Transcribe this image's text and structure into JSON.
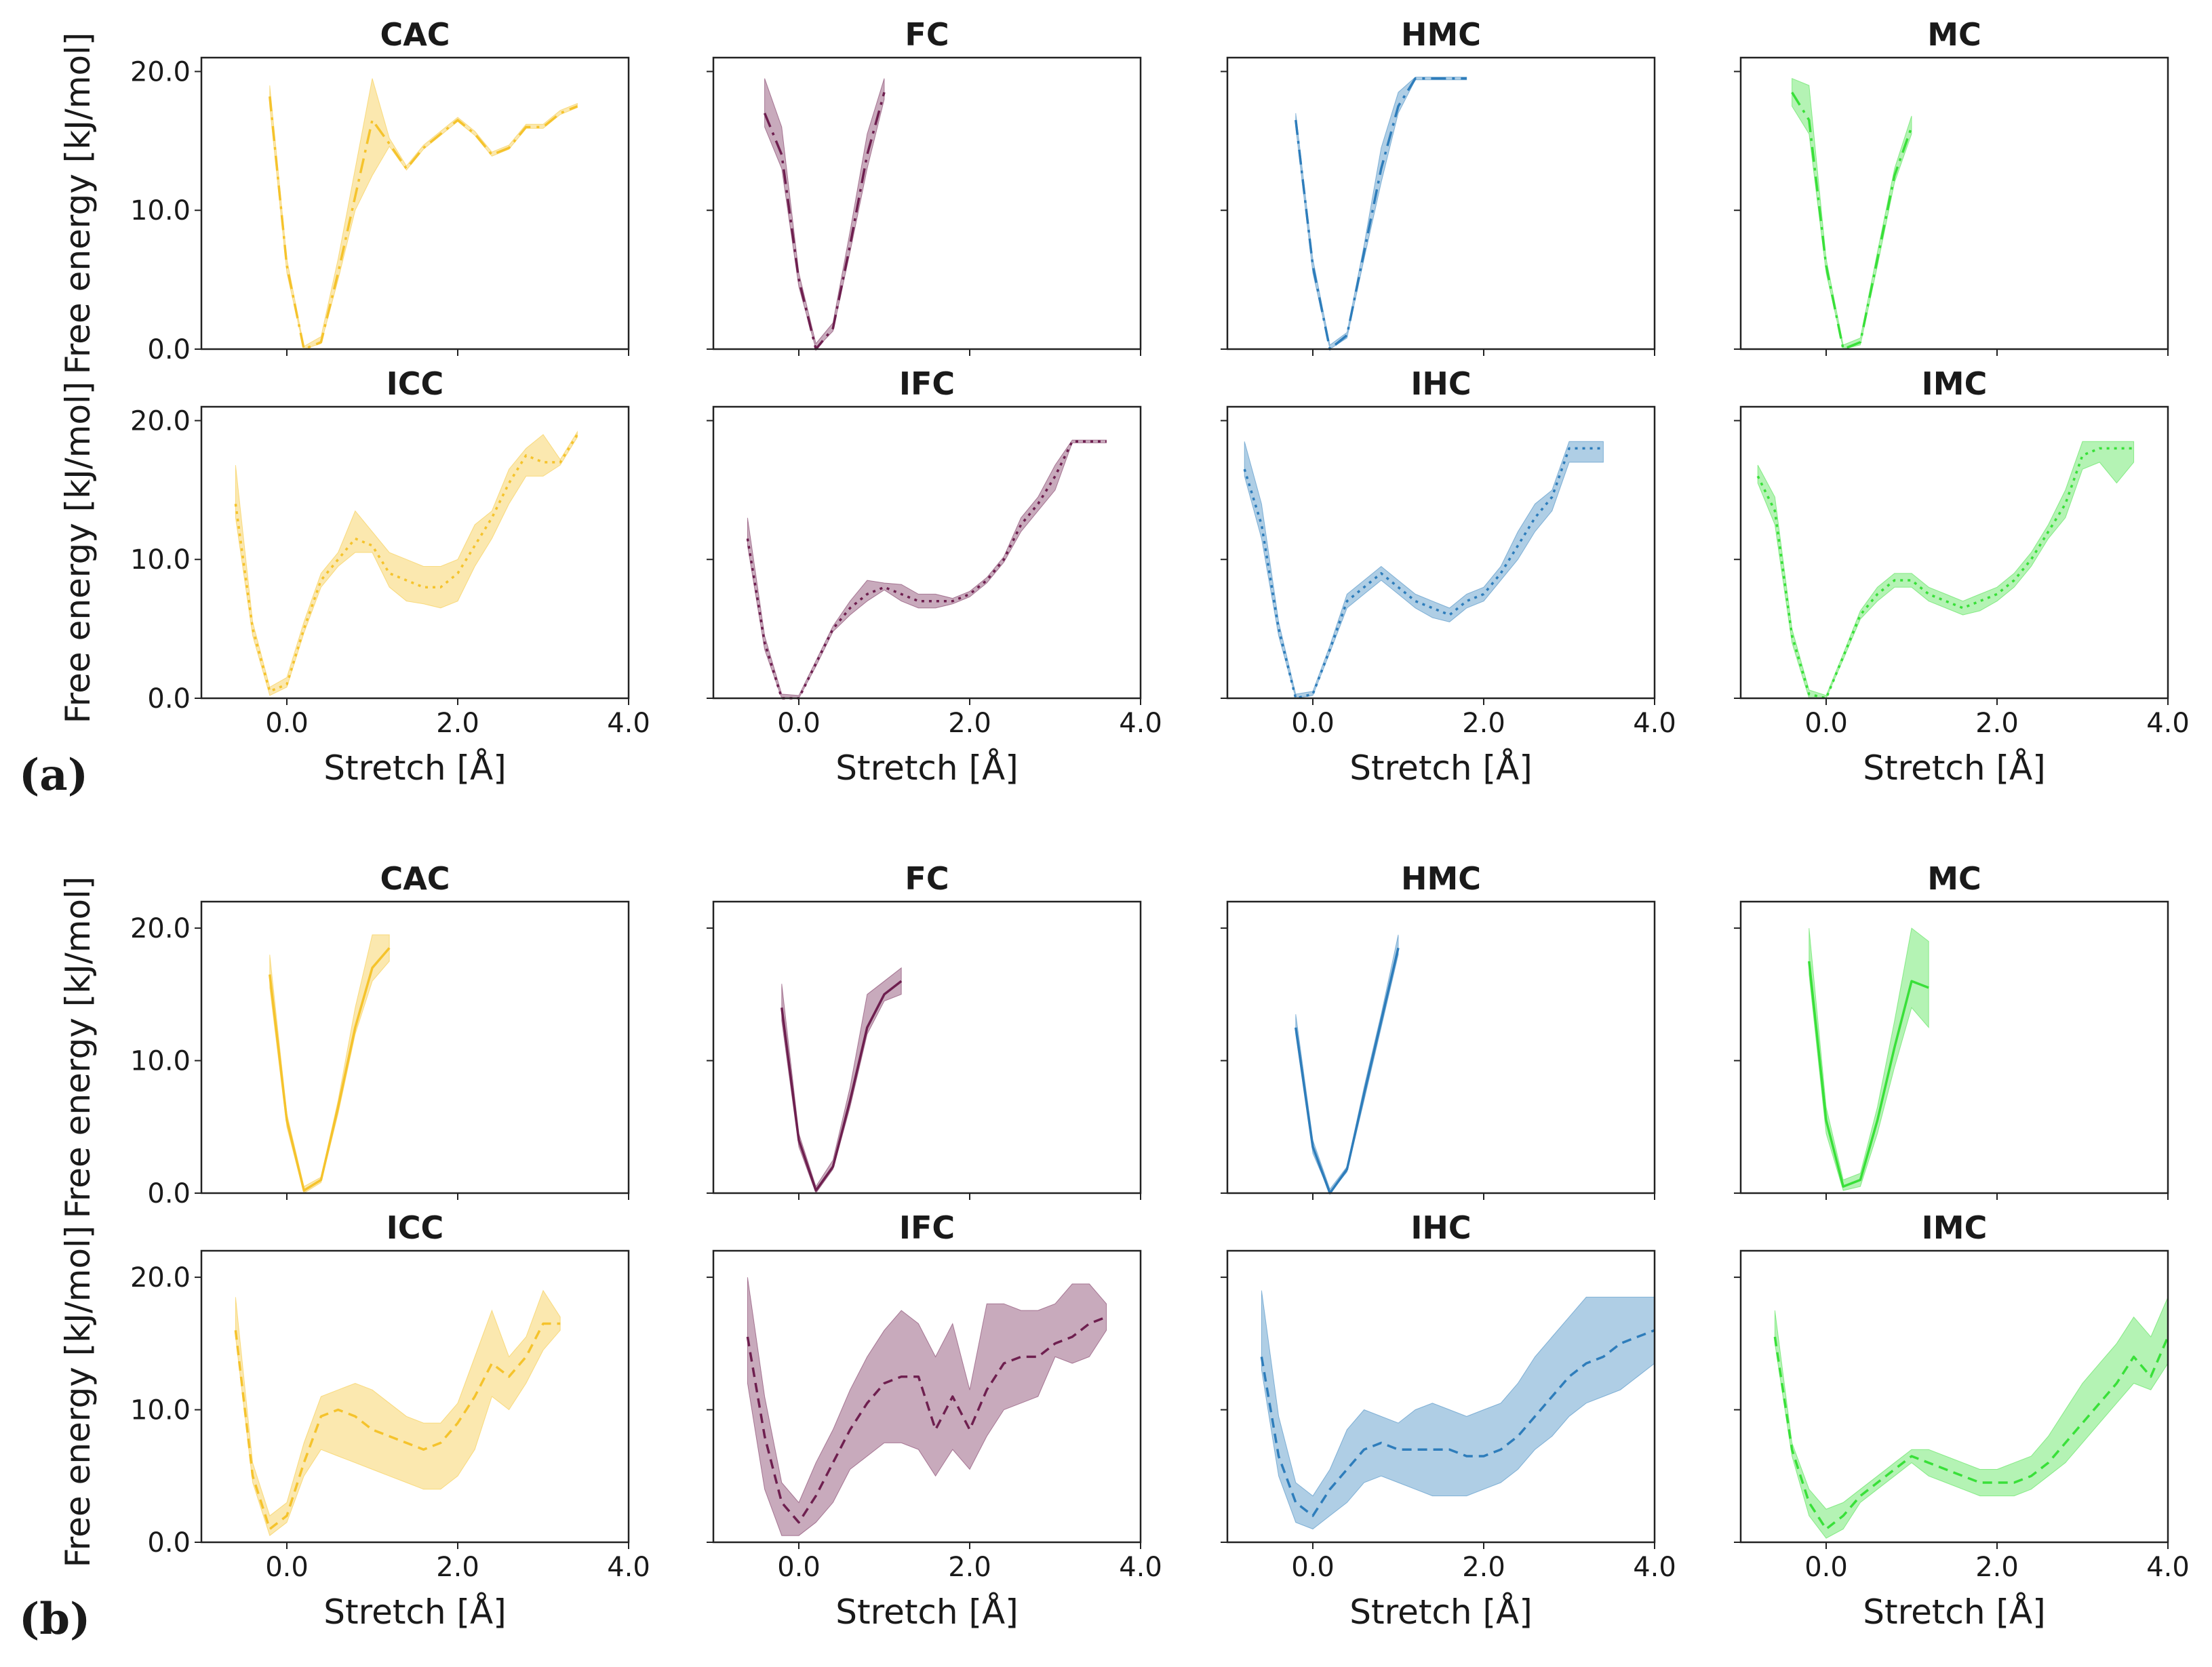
{
  "figure": {
    "panel_labels": [
      "(a)",
      "(b)"
    ],
    "xlabel": "Stretch [Å]",
    "ylabel": "Free energy [kJ/mol]",
    "x_ticks": [
      "0.0",
      "2.0",
      "4.0"
    ],
    "y_ticks": [
      "0.0",
      "10.0",
      "20.0"
    ],
    "colors": {
      "CC": "#f5c32c",
      "FC": "#6e1f4f",
      "HC": "#2e7dbb",
      "MC": "#39e039"
    }
  },
  "chart_data": [
    {
      "type": "area",
      "panel": "a",
      "title": "CAC",
      "color": "#f5c32c",
      "line_style": "dashdot",
      "xlim": [
        -1.0,
        4.0
      ],
      "ylim": [
        0.0,
        21.0
      ],
      "x": [
        -0.2,
        0.0,
        0.2,
        0.4,
        0.6,
        0.8,
        1.0,
        1.2,
        1.4,
        1.6,
        1.8,
        2.0,
        2.2,
        2.4,
        2.6,
        2.8,
        3.0,
        3.2,
        3.4
      ],
      "mean": [
        18.2,
        6.0,
        0.0,
        0.5,
        5.5,
        11.0,
        16.5,
        14.8,
        13.0,
        14.5,
        15.5,
        16.5,
        15.5,
        14.0,
        14.5,
        16.0,
        16.0,
        17.0,
        17.5
      ],
      "lower": [
        17.5,
        5.5,
        0.0,
        0.4,
        5.0,
        10.0,
        12.5,
        14.6,
        12.9,
        14.4,
        15.4,
        16.4,
        15.4,
        13.9,
        14.4,
        15.9,
        15.9,
        16.9,
        17.4
      ],
      "upper": [
        19.0,
        6.5,
        0.2,
        0.9,
        6.5,
        13.0,
        19.5,
        15.2,
        13.2,
        14.7,
        15.7,
        16.7,
        15.7,
        14.2,
        14.7,
        16.2,
        16.2,
        17.2,
        17.7
      ]
    },
    {
      "type": "area",
      "panel": "a",
      "title": "FC",
      "color": "#6e1f4f",
      "line_style": "dashdot",
      "xlim": [
        -1.0,
        4.0
      ],
      "ylim": [
        0.0,
        21.0
      ],
      "x": [
        -0.4,
        -0.2,
        0.0,
        0.2,
        0.4,
        0.6,
        0.8,
        1.0
      ],
      "mean": [
        17.0,
        14.0,
        5.0,
        0.0,
        1.5,
        7.5,
        14.0,
        18.5
      ],
      "lower": [
        16.0,
        13.0,
        4.5,
        0.0,
        1.3,
        7.0,
        13.0,
        18.0
      ],
      "upper": [
        19.5,
        16.0,
        5.5,
        0.4,
        1.9,
        8.5,
        15.5,
        19.5
      ]
    },
    {
      "type": "area",
      "panel": "a",
      "title": "HMC",
      "color": "#2e7dbb",
      "line_style": "dashdot",
      "xlim": [
        -1.0,
        4.0
      ],
      "ylim": [
        0.0,
        21.0
      ],
      "x": [
        -0.2,
        0.0,
        0.2,
        0.4,
        0.6,
        0.8,
        1.0,
        1.2,
        1.4,
        1.6,
        1.8
      ],
      "mean": [
        16.5,
        6.0,
        0.0,
        1.0,
        7.0,
        13.0,
        17.5,
        19.5,
        19.5,
        19.5,
        19.5
      ],
      "lower": [
        16.0,
        5.5,
        0.0,
        0.8,
        6.5,
        12.0,
        17.0,
        19.4,
        19.4,
        19.4,
        19.4
      ],
      "upper": [
        17.0,
        6.5,
        0.3,
        1.2,
        7.5,
        14.5,
        18.5,
        19.6,
        19.6,
        19.6,
        19.6
      ]
    },
    {
      "type": "area",
      "panel": "a",
      "title": "MC",
      "color": "#39e039",
      "line_style": "dashdot",
      "xlim": [
        -1.0,
        4.0
      ],
      "ylim": [
        0.0,
        21.0
      ],
      "x": [
        -0.4,
        -0.2,
        0.0,
        0.2,
        0.4,
        0.6,
        0.8,
        1.0
      ],
      "mean": [
        18.5,
        16.5,
        6.0,
        0.0,
        0.5,
        6.5,
        12.5,
        16.0
      ],
      "lower": [
        17.5,
        15.5,
        5.5,
        0.0,
        0.3,
        6.0,
        12.0,
        15.5
      ],
      "upper": [
        19.5,
        19.0,
        6.5,
        0.3,
        0.8,
        7.0,
        13.0,
        16.8
      ]
    },
    {
      "type": "area",
      "panel": "a",
      "title": "ICC",
      "color": "#f5c32c",
      "line_style": "dotted",
      "xlim": [
        -1.0,
        4.0
      ],
      "ylim": [
        0.0,
        21.0
      ],
      "x": [
        -0.6,
        -0.4,
        -0.2,
        0.0,
        0.2,
        0.4,
        0.6,
        0.8,
        1.0,
        1.2,
        1.4,
        1.6,
        1.8,
        2.0,
        2.2,
        2.4,
        2.6,
        2.8,
        3.0,
        3.2,
        3.4
      ],
      "mean": [
        14.0,
        5.0,
        0.5,
        1.0,
        5.0,
        8.5,
        10.0,
        11.5,
        11.0,
        9.0,
        8.5,
        8.0,
        8.0,
        9.0,
        11.0,
        13.0,
        15.5,
        17.5,
        17.0,
        17.0,
        19.0
      ],
      "lower": [
        13.0,
        4.5,
        0.2,
        0.8,
        4.7,
        8.0,
        9.5,
        10.5,
        10.5,
        8.0,
        7.0,
        6.8,
        6.5,
        7.0,
        9.5,
        11.5,
        14.0,
        16.0,
        16.0,
        16.8,
        18.8
      ],
      "upper": [
        16.8,
        5.5,
        0.8,
        1.5,
        5.5,
        9.0,
        10.5,
        13.5,
        12.0,
        10.5,
        10.0,
        9.5,
        9.5,
        10.0,
        12.5,
        13.5,
        16.5,
        18.0,
        19.0,
        17.2,
        19.2
      ]
    },
    {
      "type": "area",
      "panel": "a",
      "title": "IFC",
      "color": "#6e1f4f",
      "line_style": "dotted",
      "xlim": [
        -1.0,
        4.0
      ],
      "ylim": [
        0.0,
        21.0
      ],
      "x": [
        -0.6,
        -0.4,
        -0.2,
        0.0,
        0.2,
        0.4,
        0.6,
        0.8,
        1.0,
        1.2,
        1.4,
        1.6,
        1.8,
        2.0,
        2.2,
        2.4,
        2.6,
        2.8,
        3.0,
        3.2,
        3.4,
        3.6
      ],
      "mean": [
        11.5,
        4.0,
        0.0,
        0.0,
        2.5,
        5.0,
        6.5,
        7.5,
        8.0,
        7.5,
        7.0,
        7.0,
        7.0,
        7.5,
        8.5,
        10.0,
        12.5,
        14.0,
        16.0,
        18.5,
        18.5,
        18.5
      ],
      "lower": [
        11.0,
        3.5,
        0.0,
        0.0,
        2.3,
        4.8,
        6.0,
        7.0,
        7.8,
        7.0,
        6.5,
        6.5,
        6.8,
        7.3,
        8.3,
        9.8,
        12.0,
        13.5,
        15.0,
        18.4,
        18.4,
        18.4
      ],
      "upper": [
        13.0,
        4.5,
        0.3,
        0.2,
        2.7,
        5.2,
        7.0,
        8.5,
        8.3,
        8.2,
        7.5,
        7.5,
        7.2,
        7.7,
        8.7,
        10.2,
        13.0,
        14.5,
        16.8,
        18.6,
        18.6,
        18.6
      ]
    },
    {
      "type": "area",
      "panel": "a",
      "title": "IHC",
      "color": "#2e7dbb",
      "line_style": "dotted",
      "xlim": [
        -1.0,
        4.0
      ],
      "ylim": [
        0.0,
        21.0
      ],
      "x": [
        -0.8,
        -0.6,
        -0.4,
        -0.2,
        0.0,
        0.2,
        0.4,
        0.6,
        0.8,
        1.0,
        1.2,
        1.4,
        1.6,
        1.8,
        2.0,
        2.2,
        2.4,
        2.6,
        2.8,
        3.0,
        3.2,
        3.4
      ],
      "mean": [
        16.5,
        12.5,
        5.0,
        0.0,
        0.3,
        3.5,
        7.0,
        8.0,
        9.0,
        8.0,
        7.0,
        6.5,
        6.0,
        7.0,
        7.5,
        9.0,
        11.0,
        13.0,
        14.5,
        18.0,
        18.0,
        18.0
      ],
      "lower": [
        16.0,
        11.5,
        4.5,
        0.0,
        0.2,
        3.3,
        6.5,
        7.5,
        8.5,
        7.5,
        6.5,
        5.8,
        5.5,
        6.5,
        7.0,
        8.5,
        10.0,
        12.0,
        13.5,
        17.0,
        17.0,
        17.0
      ],
      "upper": [
        18.5,
        14.0,
        5.5,
        0.3,
        0.5,
        3.8,
        7.5,
        8.5,
        9.5,
        8.5,
        7.5,
        7.0,
        6.5,
        7.5,
        8.0,
        9.5,
        12.0,
        14.0,
        15.0,
        18.5,
        18.5,
        18.5
      ]
    },
    {
      "type": "area",
      "panel": "a",
      "title": "IMC",
      "color": "#39e039",
      "line_style": "dotted",
      "xlim": [
        -1.0,
        4.0
      ],
      "ylim": [
        0.0,
        21.0
      ],
      "x": [
        -0.8,
        -0.6,
        -0.4,
        -0.2,
        0.0,
        0.2,
        0.4,
        0.6,
        0.8,
        1.0,
        1.2,
        1.4,
        1.6,
        1.8,
        2.0,
        2.2,
        2.4,
        2.6,
        2.8,
        3.0,
        3.2,
        3.4,
        3.6
      ],
      "mean": [
        16.0,
        13.5,
        4.5,
        0.3,
        0.0,
        3.0,
        6.0,
        7.5,
        8.5,
        8.5,
        7.5,
        7.0,
        6.5,
        7.0,
        7.5,
        8.5,
        10.0,
        12.0,
        14.0,
        17.5,
        18.0,
        18.0,
        18.0
      ],
      "lower": [
        15.5,
        12.5,
        4.0,
        0.0,
        0.0,
        2.8,
        5.7,
        7.0,
        8.0,
        8.0,
        7.0,
        6.5,
        6.0,
        6.3,
        7.0,
        8.0,
        9.5,
        11.5,
        13.0,
        16.5,
        17.0,
        15.5,
        17.0
      ],
      "upper": [
        16.8,
        14.5,
        5.0,
        0.6,
        0.2,
        3.2,
        6.3,
        8.0,
        9.0,
        9.0,
        8.0,
        7.5,
        7.0,
        7.5,
        8.0,
        9.0,
        10.5,
        12.5,
        15.0,
        18.5,
        18.5,
        18.5,
        18.5
      ]
    },
    {
      "type": "area",
      "panel": "b",
      "title": "CAC",
      "color": "#f5c32c",
      "line_style": "solid",
      "xlim": [
        -1.0,
        4.0
      ],
      "ylim": [
        0.0,
        22.0
      ],
      "x": [
        -0.2,
        0.0,
        0.2,
        0.4,
        0.6,
        0.8,
        1.0,
        1.2
      ],
      "mean": [
        16.5,
        5.5,
        0.2,
        1.0,
        6.5,
        12.5,
        17.0,
        18.5
      ],
      "lower": [
        15.5,
        5.0,
        0.0,
        0.8,
        6.0,
        12.0,
        16.0,
        17.5
      ],
      "upper": [
        18.0,
        6.0,
        0.5,
        1.2,
        7.0,
        14.0,
        19.5,
        19.5
      ]
    },
    {
      "type": "area",
      "panel": "b",
      "title": "FC",
      "color": "#6e1f4f",
      "line_style": "solid",
      "xlim": [
        -1.0,
        4.0
      ],
      "ylim": [
        0.0,
        22.0
      ],
      "x": [
        -0.2,
        0.0,
        0.2,
        0.4,
        0.6,
        0.8,
        1.0,
        1.2
      ],
      "mean": [
        14.0,
        4.0,
        0.2,
        2.0,
        7.0,
        12.5,
        15.0,
        16.0
      ],
      "lower": [
        13.0,
        3.5,
        0.0,
        1.8,
        6.5,
        12.0,
        14.5,
        15.0
      ],
      "upper": [
        15.8,
        4.5,
        0.5,
        2.5,
        8.0,
        15.0,
        16.0,
        17.0
      ]
    },
    {
      "type": "area",
      "panel": "b",
      "title": "HMC",
      "color": "#2e7dbb",
      "line_style": "solid",
      "xlim": [
        -1.0,
        4.0
      ],
      "ylim": [
        0.0,
        22.0
      ],
      "x": [
        -0.2,
        0.0,
        0.2,
        0.4,
        0.6,
        0.8,
        1.0
      ],
      "mean": [
        12.5,
        3.5,
        0.0,
        1.8,
        7.5,
        13.0,
        18.5
      ],
      "lower": [
        12.0,
        3.0,
        0.0,
        1.6,
        7.0,
        12.5,
        18.0
      ],
      "upper": [
        13.5,
        4.0,
        0.3,
        2.0,
        8.0,
        13.5,
        19.5
      ]
    },
    {
      "type": "area",
      "panel": "b",
      "title": "MC",
      "color": "#39e039",
      "line_style": "solid",
      "xlim": [
        -1.0,
        4.0
      ],
      "ylim": [
        0.0,
        22.0
      ],
      "x": [
        -0.2,
        0.0,
        0.2,
        0.4,
        0.6,
        0.8,
        1.0,
        1.2
      ],
      "mean": [
        17.5,
        5.5,
        0.5,
        1.0,
        5.5,
        11.0,
        16.0,
        15.5
      ],
      "lower": [
        16.5,
        4.5,
        0.2,
        0.5,
        4.5,
        9.5,
        14.0,
        12.5
      ],
      "upper": [
        20.0,
        6.5,
        1.0,
        1.5,
        6.5,
        13.0,
        20.0,
        19.0
      ]
    },
    {
      "type": "area",
      "panel": "b",
      "title": "ICC",
      "color": "#f5c32c",
      "line_style": "dashed",
      "xlim": [
        -1.0,
        4.0
      ],
      "ylim": [
        0.0,
        22.0
      ],
      "x": [
        -0.6,
        -0.4,
        -0.2,
        0.0,
        0.2,
        0.4,
        0.6,
        0.8,
        1.0,
        1.2,
        1.4,
        1.6,
        1.8,
        2.0,
        2.2,
        2.4,
        2.6,
        2.8,
        3.0,
        3.2
      ],
      "mean": [
        16.0,
        5.0,
        1.0,
        2.0,
        6.0,
        9.5,
        10.0,
        9.5,
        8.5,
        8.0,
        7.5,
        7.0,
        7.5,
        9.0,
        11.0,
        13.5,
        12.5,
        14.0,
        16.5,
        16.5
      ],
      "lower": [
        15.5,
        4.5,
        0.5,
        1.5,
        5.0,
        7.0,
        6.5,
        6.0,
        5.5,
        5.0,
        4.5,
        4.0,
        4.0,
        5.0,
        7.0,
        11.0,
        10.0,
        12.0,
        14.5,
        16.0
      ],
      "upper": [
        18.5,
        6.0,
        2.0,
        3.0,
        7.5,
        11.0,
        11.5,
        12.0,
        11.5,
        10.5,
        9.5,
        9.0,
        9.0,
        10.5,
        14.0,
        17.5,
        14.0,
        15.5,
        19.0,
        17.0
      ]
    },
    {
      "type": "area",
      "panel": "b",
      "title": "IFC",
      "color": "#6e1f4f",
      "line_style": "dashed",
      "xlim": [
        -1.0,
        4.0
      ],
      "ylim": [
        0.0,
        22.0
      ],
      "x": [
        -0.6,
        -0.4,
        -0.2,
        0.0,
        0.2,
        0.4,
        0.6,
        0.8,
        1.0,
        1.2,
        1.4,
        1.6,
        1.8,
        2.0,
        2.2,
        2.4,
        2.6,
        2.8,
        3.0,
        3.2,
        3.4,
        3.6
      ],
      "mean": [
        15.5,
        8.0,
        3.0,
        1.5,
        3.5,
        6.0,
        8.5,
        10.5,
        12.0,
        12.5,
        12.5,
        8.5,
        11.0,
        8.5,
        11.5,
        13.5,
        14.0,
        14.0,
        15.0,
        15.5,
        16.5,
        17.0
      ],
      "lower": [
        12.0,
        4.0,
        0.5,
        0.5,
        1.5,
        3.0,
        5.5,
        6.5,
        7.5,
        7.5,
        7.0,
        5.0,
        7.0,
        5.5,
        8.0,
        10.0,
        10.5,
        11.0,
        14.0,
        13.5,
        14.0,
        16.0
      ],
      "upper": [
        20.0,
        11.0,
        4.5,
        3.0,
        6.0,
        8.5,
        11.5,
        14.0,
        16.0,
        17.5,
        16.5,
        14.0,
        16.5,
        11.5,
        18.0,
        18.0,
        17.5,
        17.5,
        18.0,
        19.5,
        19.5,
        18.0
      ]
    },
    {
      "type": "area",
      "panel": "b",
      "title": "IHC",
      "color": "#2e7dbb",
      "line_style": "dashed",
      "xlim": [
        -1.0,
        4.0
      ],
      "ylim": [
        0.0,
        22.0
      ],
      "x": [
        -0.6,
        -0.4,
        -0.2,
        0.0,
        0.2,
        0.4,
        0.6,
        0.8,
        1.0,
        1.2,
        1.4,
        1.6,
        1.8,
        2.0,
        2.2,
        2.4,
        2.6,
        2.8,
        3.0,
        3.2,
        3.4,
        3.6,
        3.8,
        4.0
      ],
      "mean": [
        14.0,
        6.5,
        3.0,
        2.0,
        4.0,
        5.5,
        7.0,
        7.5,
        7.0,
        7.0,
        7.0,
        7.0,
        6.5,
        6.5,
        7.0,
        8.0,
        9.5,
        11.0,
        12.5,
        13.5,
        14.0,
        15.0,
        15.5,
        16.0
      ],
      "lower": [
        13.0,
        5.0,
        1.5,
        1.0,
        2.0,
        3.0,
        4.5,
        5.0,
        4.5,
        4.0,
        3.5,
        3.5,
        3.5,
        4.0,
        4.5,
        5.5,
        7.0,
        8.0,
        9.5,
        10.5,
        11.0,
        11.5,
        12.5,
        13.5
      ],
      "upper": [
        19.0,
        9.5,
        4.5,
        3.5,
        5.5,
        8.5,
        10.0,
        9.5,
        9.0,
        10.0,
        10.5,
        10.0,
        9.5,
        10.0,
        10.5,
        12.0,
        14.0,
        15.5,
        17.0,
        18.5,
        18.5,
        18.5,
        18.5,
        18.5
      ]
    },
    {
      "type": "area",
      "panel": "b",
      "title": "IMC",
      "color": "#39e039",
      "line_style": "dashed",
      "xlim": [
        -1.0,
        4.0
      ],
      "ylim": [
        0.0,
        22.0
      ],
      "x": [
        -0.6,
        -0.4,
        -0.2,
        0.0,
        0.2,
        0.4,
        0.6,
        0.8,
        1.0,
        1.2,
        1.4,
        1.6,
        1.8,
        2.0,
        2.2,
        2.4,
        2.6,
        2.8,
        3.0,
        3.2,
        3.4,
        3.6,
        3.8,
        4.0
      ],
      "mean": [
        15.5,
        7.0,
        3.0,
        1.0,
        2.0,
        3.5,
        4.5,
        5.5,
        6.5,
        6.0,
        5.5,
        5.0,
        4.5,
        4.5,
        4.5,
        5.0,
        6.0,
        7.5,
        9.0,
        10.5,
        12.0,
        14.0,
        12.5,
        15.5
      ],
      "lower": [
        15.0,
        6.5,
        2.0,
        0.3,
        1.0,
        3.0,
        4.0,
        5.0,
        6.0,
        5.0,
        4.5,
        4.0,
        3.5,
        3.5,
        3.5,
        4.0,
        5.0,
        6.0,
        7.5,
        9.0,
        10.5,
        12.0,
        11.5,
        13.5
      ],
      "upper": [
        17.5,
        7.5,
        4.0,
        2.5,
        3.0,
        4.0,
        5.0,
        6.0,
        7.0,
        7.0,
        6.5,
        6.0,
        5.5,
        5.5,
        6.0,
        6.5,
        8.0,
        10.0,
        12.0,
        13.5,
        15.0,
        17.0,
        15.5,
        18.5
      ]
    }
  ]
}
